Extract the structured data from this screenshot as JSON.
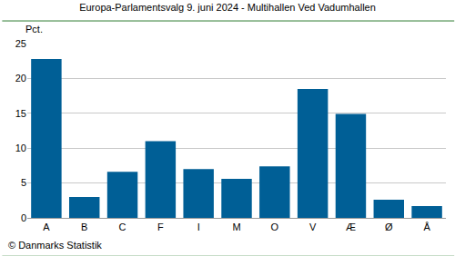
{
  "chart_data": {
    "type": "bar",
    "title": "Europa-Parlamentsvalg 9. juni 2024 - Multihallen Ved Vadumhallen",
    "y_label": "Pct.",
    "annotations": [
      "© Danmarks Statistik"
    ],
    "categories": [
      "A",
      "B",
      "C",
      "F",
      "I",
      "M",
      "O",
      "V",
      "Æ",
      "Ø",
      "Å"
    ],
    "values": [
      22.8,
      3.0,
      6.6,
      11.0,
      7.0,
      5.6,
      7.4,
      18.5,
      14.9,
      2.6,
      1.7
    ],
    "color": "#005f96",
    "ylim": [
      0,
      25
    ],
    "yticks": [
      0,
      5,
      10,
      15,
      20,
      25
    ],
    "grid": true
  }
}
